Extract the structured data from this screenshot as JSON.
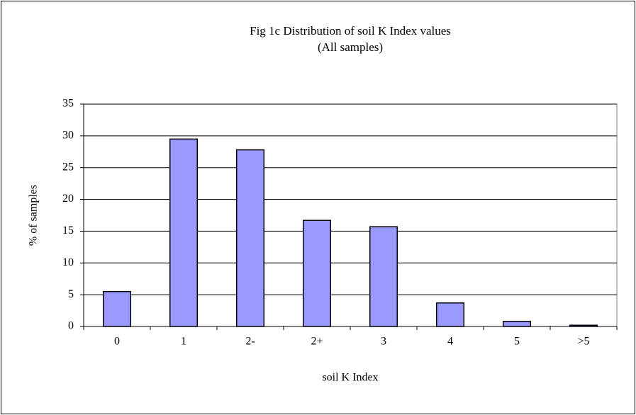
{
  "chart_data": {
    "type": "bar",
    "title": "Fig 1c Distribution of soil K Index values",
    "subtitle": "(All samples)",
    "x_label": "soil K Index",
    "y_label": "% of samples",
    "categories": [
      "0",
      "1",
      "2-",
      "2+",
      "3",
      "4",
      "5",
      ">5"
    ],
    "values": [
      5.5,
      29.5,
      27.8,
      16.7,
      15.7,
      3.7,
      0.8,
      0.2
    ],
    "color": "#9999ff",
    "ylim": [
      0,
      35
    ],
    "yticks": [
      0,
      5,
      10,
      15,
      20,
      25,
      30,
      35
    ],
    "grid": true
  }
}
